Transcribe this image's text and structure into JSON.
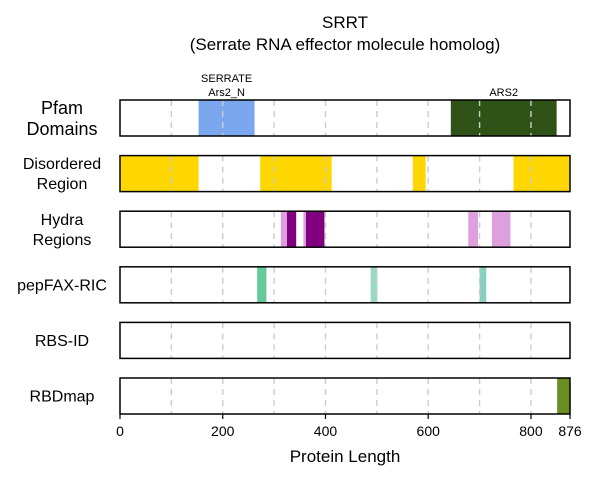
{
  "chart_data": {
    "type": "track",
    "title": "SRRT",
    "subtitle": "(Serrate RNA effector molecule homolog)",
    "xlabel": "Protein Length",
    "xlim": [
      0,
      876
    ],
    "xticks": [
      0,
      200,
      400,
      600,
      800,
      876
    ],
    "xtick_labels": [
      "0",
      "200",
      "400",
      "600",
      "800",
      "876"
    ],
    "grid_x": [
      100,
      200,
      300,
      400,
      500,
      600,
      700,
      800
    ],
    "tracks": [
      {
        "key": "pfam",
        "label_lines": [
          "Pfam",
          "Domains"
        ],
        "segments": [
          {
            "start": 153,
            "end": 262,
            "color": "#7aa7ed",
            "label_lines": [
              "SERRATE",
              "Ars2_N"
            ]
          },
          {
            "start": 644,
            "end": 850,
            "color": "#2f5217",
            "label_lines": [
              "ARS2"
            ]
          }
        ]
      },
      {
        "key": "disordered",
        "label_lines": [
          "Disordered",
          "Region"
        ],
        "segments": [
          {
            "start": 0,
            "end": 153,
            "color": "#ffd700"
          },
          {
            "start": 273,
            "end": 412,
            "color": "#ffd700"
          },
          {
            "start": 570,
            "end": 595,
            "color": "#ffd700"
          },
          {
            "start": 766,
            "end": 876,
            "color": "#ffd700"
          }
        ]
      },
      {
        "key": "hydra",
        "label_lines": [
          "Hydra",
          "Regions"
        ],
        "segments": [
          {
            "start": 313,
            "end": 325,
            "color": "#dda0dd"
          },
          {
            "start": 325,
            "end": 343,
            "color": "#800080"
          },
          {
            "start": 357,
            "end": 362,
            "color": "#dda0dd"
          },
          {
            "start": 362,
            "end": 398,
            "color": "#800080"
          },
          {
            "start": 678,
            "end": 697,
            "color": "#dda0dd"
          },
          {
            "start": 724,
            "end": 760,
            "color": "#dda0dd"
          }
        ]
      },
      {
        "key": "pepfax",
        "label_lines": [
          "pepFAX-RIC"
        ],
        "segments": [
          {
            "start": 267,
            "end": 285,
            "color": "#66c999"
          },
          {
            "start": 488,
            "end": 501,
            "color": "#99d9c0"
          },
          {
            "start": 700,
            "end": 713,
            "color": "#88cfc0"
          }
        ]
      },
      {
        "key": "rbsid",
        "label_lines": [
          "RBS-ID"
        ],
        "segments": []
      },
      {
        "key": "rbdmap",
        "label_lines": [
          "RBDmap"
        ],
        "segments": [
          {
            "start": 851,
            "end": 876,
            "color": "#6b8e23"
          }
        ]
      }
    ]
  }
}
